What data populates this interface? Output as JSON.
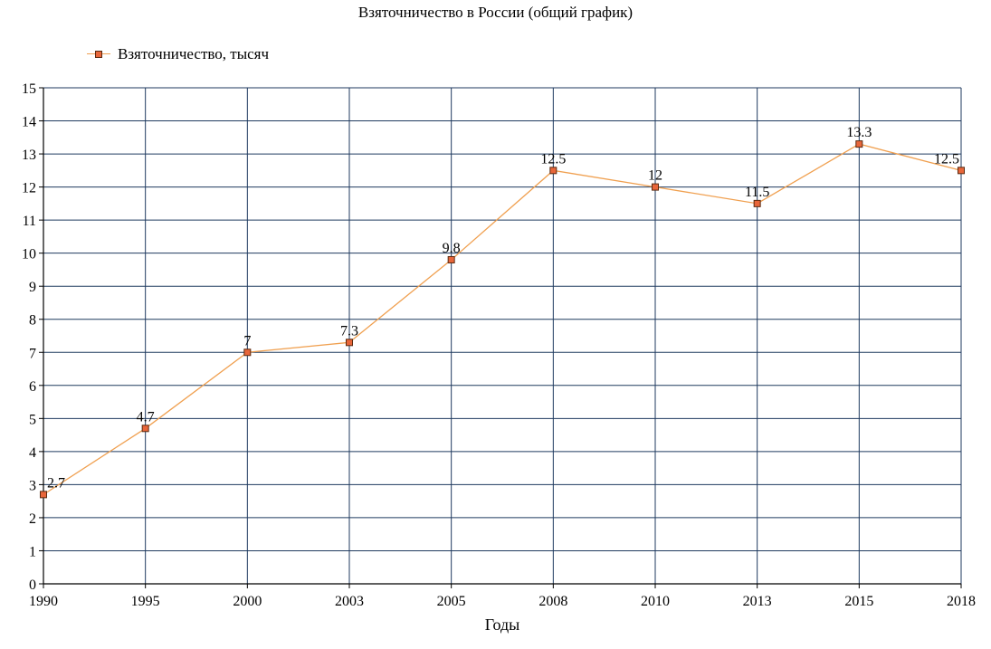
{
  "chart_data": {
    "type": "line",
    "title": "Взяточничество в России (общий график)",
    "xlabel": "Годы",
    "ylabel": "",
    "ylim": [
      0,
      15
    ],
    "yticks": [
      "0",
      "1",
      "2",
      "3",
      "4",
      "5",
      "6",
      "7",
      "8",
      "9",
      "10",
      "11",
      "12",
      "13",
      "14",
      "15"
    ],
    "categories": [
      "1990",
      "1995",
      "2000",
      "2003",
      "2005",
      "2008",
      "2010",
      "2013",
      "2015",
      "2018"
    ],
    "series": [
      {
        "name": "Взяточничество, тысяч",
        "values": [
          2.7,
          4.7,
          7,
          7.3,
          9.8,
          12.5,
          12,
          11.5,
          13.3,
          12.5
        ],
        "labels": [
          "2.7",
          "4.7",
          "7",
          "7.3",
          "9.8",
          "12.5",
          "12",
          "11.5",
          "13.3",
          "12.5"
        ],
        "line_color": "#F0A050",
        "marker_color": "#E8663A"
      }
    ],
    "grid": true,
    "grid_color": "#1F3A5F",
    "legend_position": "top-left"
  }
}
